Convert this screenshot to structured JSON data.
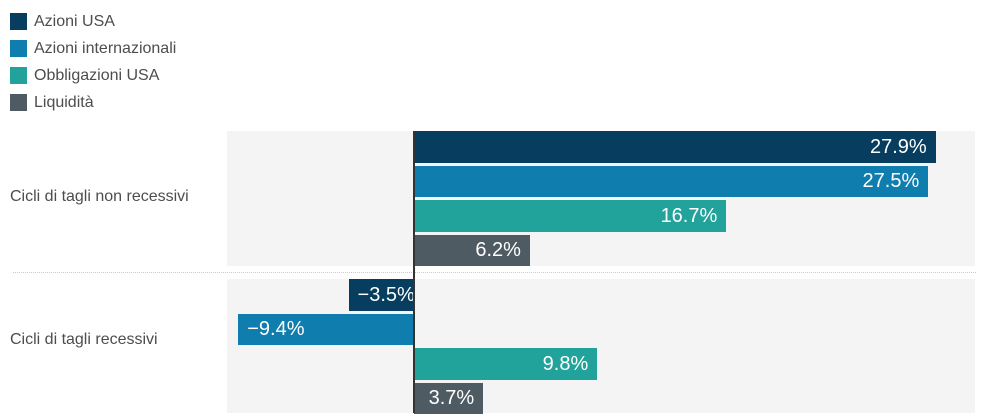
{
  "chart_data": {
    "type": "bar",
    "orientation": "horizontal",
    "title": "",
    "categories": [
      "Cicli di tagli non recessivi",
      "Cicli di tagli recessivi"
    ],
    "series": [
      {
        "name": "Azioni USA",
        "color": "#073d5f",
        "values": [
          27.9,
          -3.5
        ]
      },
      {
        "name": "Azioni internazionali",
        "color": "#0f7dae",
        "values": [
          27.5,
          -9.4
        ]
      },
      {
        "name": "Obbligazioni USA",
        "color": "#21a29b",
        "values": [
          16.7,
          9.8
        ]
      },
      {
        "name": "Liquidità",
        "color": "#4f5b63",
        "values": [
          6.2,
          3.7
        ]
      }
    ],
    "value_labels": [
      [
        "27.9%",
        "27.5%",
        "16.7%",
        "6.2%"
      ],
      [
        "−3.5%",
        "−9.4%",
        "9.8%",
        "3.7%"
      ]
    ],
    "xlim": [
      -10,
      30
    ],
    "grid": false,
    "legend_position": "top-left",
    "plot_background": "#f4f4f4",
    "zero_line_color": "#333333",
    "separator_color": "#c9c9c9",
    "label_text_color": "#4d4d4d",
    "value_label_color": "#ffffff"
  }
}
